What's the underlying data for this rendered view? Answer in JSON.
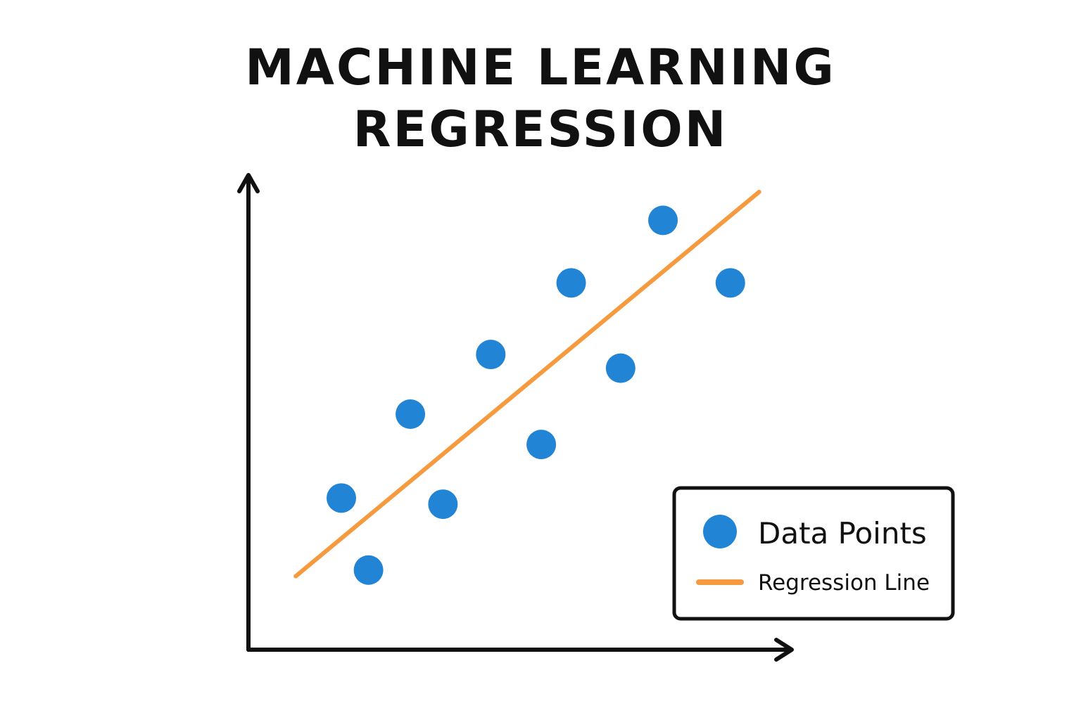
{
  "title_lines": [
    "MACHINE LEARNING",
    "REGRESSION"
  ],
  "colors": {
    "points": "#2284d4",
    "line": "#f59a3e",
    "axis": "#111111",
    "background": "#ffffff"
  },
  "legend": {
    "placement": "bottom-right",
    "points_label": "Data Points",
    "line_label": "Regression Line"
  },
  "chart_data": {
    "type": "scatter",
    "title": "MACHINE LEARNING REGRESSION",
    "xlabel": "",
    "ylabel": "",
    "grid": false,
    "xlim": [
      0,
      10
    ],
    "ylim": [
      0,
      10
    ],
    "series": [
      {
        "name": "Data Points",
        "kind": "scatter",
        "x": [
          1.71,
          2.21,
          2.98,
          3.58,
          4.46,
          5.39,
          5.94,
          6.85,
          7.63,
          8.87
        ],
        "y": [
          3.2,
          1.68,
          4.97,
          3.07,
          6.23,
          4.33,
          7.74,
          5.94,
          9.06,
          7.74
        ]
      },
      {
        "name": "Regression Line",
        "kind": "line",
        "x": [
          0.87,
          9.4
        ],
        "y": [
          1.55,
          9.66
        ]
      }
    ]
  }
}
